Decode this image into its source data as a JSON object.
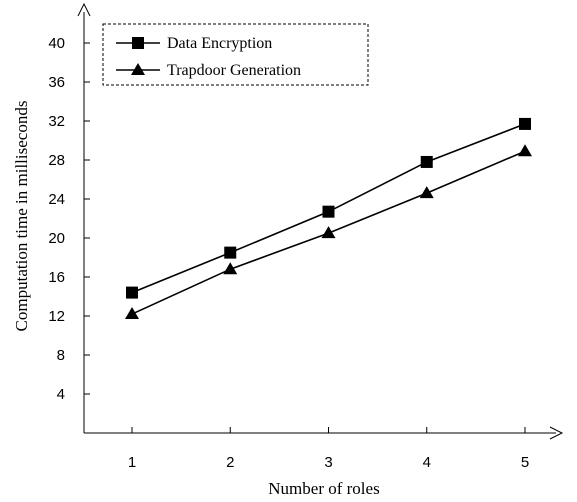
{
  "chart_data": {
    "type": "line",
    "title": "",
    "xlabel": "Number of roles",
    "ylabel": "Computation time in milliseconds",
    "x": [
      1,
      2,
      3,
      4,
      5
    ],
    "xlim": [
      0.5,
      5.5
    ],
    "ylim": [
      0,
      43
    ],
    "yticks": [
      4,
      8,
      12,
      16,
      20,
      24,
      28,
      32,
      36,
      40
    ],
    "grid": false,
    "legend_position": "top-left",
    "series": [
      {
        "name": "Data Encryption",
        "marker": "square",
        "color": "#000000",
        "values": [
          14.4,
          18.5,
          22.7,
          27.8,
          31.7
        ]
      },
      {
        "name": "Trapdoor Generation",
        "marker": "triangle",
        "color": "#000000",
        "values": [
          12.2,
          16.8,
          20.5,
          24.6,
          28.9
        ]
      }
    ]
  }
}
